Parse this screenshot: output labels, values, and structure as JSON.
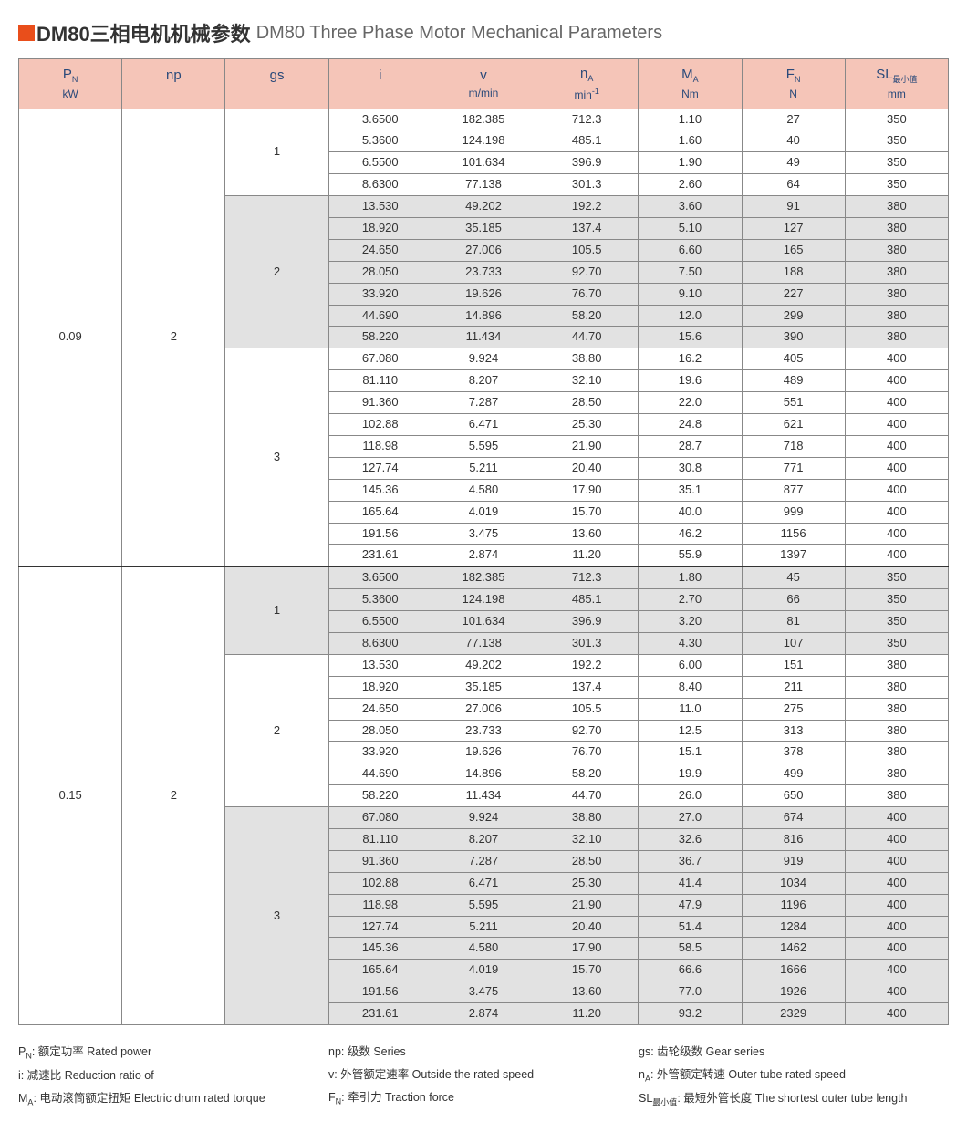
{
  "title": {
    "cn": "DM80三相电机机械参数",
    "en": "DM80 Three Phase Motor Mechanical Parameters"
  },
  "columns": [
    {
      "sym": "P<sub>N</sub>",
      "unit": "kW"
    },
    {
      "sym": "np",
      "unit": ""
    },
    {
      "sym": "gs",
      "unit": ""
    },
    {
      "sym": "i",
      "unit": ""
    },
    {
      "sym": "v",
      "unit": "m/min"
    },
    {
      "sym": "n<sub>A</sub>",
      "unit": "min<sup>-1</sup>"
    },
    {
      "sym": "M<sub>A</sub>",
      "unit": "Nm"
    },
    {
      "sym": "F<sub>N</sub>",
      "unit": "N"
    },
    {
      "sym": "SL<sub>最小值</sub>",
      "unit": "mm"
    }
  ],
  "blocks": [
    {
      "pn": "0.09",
      "np": "2",
      "gs_groups": [
        {
          "gs": "1",
          "shaded": false,
          "rows": [
            [
              "3.6500",
              "182.385",
              "712.3",
              "1.10",
              "27",
              "350"
            ],
            [
              "5.3600",
              "124.198",
              "485.1",
              "1.60",
              "40",
              "350"
            ],
            [
              "6.5500",
              "101.634",
              "396.9",
              "1.90",
              "49",
              "350"
            ],
            [
              "8.6300",
              "77.138",
              "301.3",
              "2.60",
              "64",
              "350"
            ]
          ]
        },
        {
          "gs": "2",
          "shaded": true,
          "rows": [
            [
              "13.530",
              "49.202",
              "192.2",
              "3.60",
              "91",
              "380"
            ],
            [
              "18.920",
              "35.185",
              "137.4",
              "5.10",
              "127",
              "380"
            ],
            [
              "24.650",
              "27.006",
              "105.5",
              "6.60",
              "165",
              "380"
            ],
            [
              "28.050",
              "23.733",
              "92.70",
              "7.50",
              "188",
              "380"
            ],
            [
              "33.920",
              "19.626",
              "76.70",
              "9.10",
              "227",
              "380"
            ],
            [
              "44.690",
              "14.896",
              "58.20",
              "12.0",
              "299",
              "380"
            ],
            [
              "58.220",
              "11.434",
              "44.70",
              "15.6",
              "390",
              "380"
            ]
          ]
        },
        {
          "gs": "3",
          "shaded": false,
          "rows": [
            [
              "67.080",
              "9.924",
              "38.80",
              "16.2",
              "405",
              "400"
            ],
            [
              "81.110",
              "8.207",
              "32.10",
              "19.6",
              "489",
              "400"
            ],
            [
              "91.360",
              "7.287",
              "28.50",
              "22.0",
              "551",
              "400"
            ],
            [
              "102.88",
              "6.471",
              "25.30",
              "24.8",
              "621",
              "400"
            ],
            [
              "118.98",
              "5.595",
              "21.90",
              "28.7",
              "718",
              "400"
            ],
            [
              "127.74",
              "5.211",
              "20.40",
              "30.8",
              "771",
              "400"
            ],
            [
              "145.36",
              "4.580",
              "17.90",
              "35.1",
              "877",
              "400"
            ],
            [
              "165.64",
              "4.019",
              "15.70",
              "40.0",
              "999",
              "400"
            ],
            [
              "191.56",
              "3.475",
              "13.60",
              "46.2",
              "1156",
              "400"
            ],
            [
              "231.61",
              "2.874",
              "11.20",
              "55.9",
              "1397",
              "400"
            ]
          ]
        }
      ]
    },
    {
      "pn": "0.15",
      "np": "2",
      "gs_groups": [
        {
          "gs": "1",
          "shaded": true,
          "rows": [
            [
              "3.6500",
              "182.385",
              "712.3",
              "1.80",
              "45",
              "350"
            ],
            [
              "5.3600",
              "124.198",
              "485.1",
              "2.70",
              "66",
              "350"
            ],
            [
              "6.5500",
              "101.634",
              "396.9",
              "3.20",
              "81",
              "350"
            ],
            [
              "8.6300",
              "77.138",
              "301.3",
              "4.30",
              "107",
              "350"
            ]
          ]
        },
        {
          "gs": "2",
          "shaded": false,
          "rows": [
            [
              "13.530",
              "49.202",
              "192.2",
              "6.00",
              "151",
              "380"
            ],
            [
              "18.920",
              "35.185",
              "137.4",
              "8.40",
              "211",
              "380"
            ],
            [
              "24.650",
              "27.006",
              "105.5",
              "11.0",
              "275",
              "380"
            ],
            [
              "28.050",
              "23.733",
              "92.70",
              "12.5",
              "313",
              "380"
            ],
            [
              "33.920",
              "19.626",
              "76.70",
              "15.1",
              "378",
              "380"
            ],
            [
              "44.690",
              "14.896",
              "58.20",
              "19.9",
              "499",
              "380"
            ],
            [
              "58.220",
              "11.434",
              "44.70",
              "26.0",
              "650",
              "380"
            ]
          ]
        },
        {
          "gs": "3",
          "shaded": true,
          "rows": [
            [
              "67.080",
              "9.924",
              "38.80",
              "27.0",
              "674",
              "400"
            ],
            [
              "81.110",
              "8.207",
              "32.10",
              "32.6",
              "816",
              "400"
            ],
            [
              "91.360",
              "7.287",
              "28.50",
              "36.7",
              "919",
              "400"
            ],
            [
              "102.88",
              "6.471",
              "25.30",
              "41.4",
              "1034",
              "400"
            ],
            [
              "118.98",
              "5.595",
              "21.90",
              "47.9",
              "1196",
              "400"
            ],
            [
              "127.74",
              "5.211",
              "20.40",
              "51.4",
              "1284",
              "400"
            ],
            [
              "145.36",
              "4.580",
              "17.90",
              "58.5",
              "1462",
              "400"
            ],
            [
              "165.64",
              "4.019",
              "15.70",
              "66.6",
              "1666",
              "400"
            ],
            [
              "191.56",
              "3.475",
              "13.60",
              "77.0",
              "1926",
              "400"
            ],
            [
              "231.61",
              "2.874",
              "11.20",
              "93.2",
              "2329",
              "400"
            ]
          ]
        }
      ]
    }
  ],
  "legend": {
    "col1": [
      "P<sub>N</sub>: 额定功率 Rated power",
      "i: 减速比 Reduction ratio of",
      "M<sub>A</sub>: 电动滚筒额定扭矩 Electric drum rated torque"
    ],
    "col2": [
      "np: 级数 Series",
      "v: 外管额定速率 Outside the rated speed",
      "F<sub>N</sub>: 牵引力 Traction force"
    ],
    "col3": [
      "gs: 齿轮级数 Gear series",
      "n<sub>A</sub>: 外管额定转速 Outer tube rated speed",
      "SL<sub>最小值</sub>: 最短外管长度 The shortest outer tube length"
    ]
  },
  "colors": {
    "accent": "#e94e1b",
    "header_bg": "#f5c5b8",
    "header_text": "#2a4a7a",
    "shade": "#e2e2e2",
    "border": "#888888"
  }
}
